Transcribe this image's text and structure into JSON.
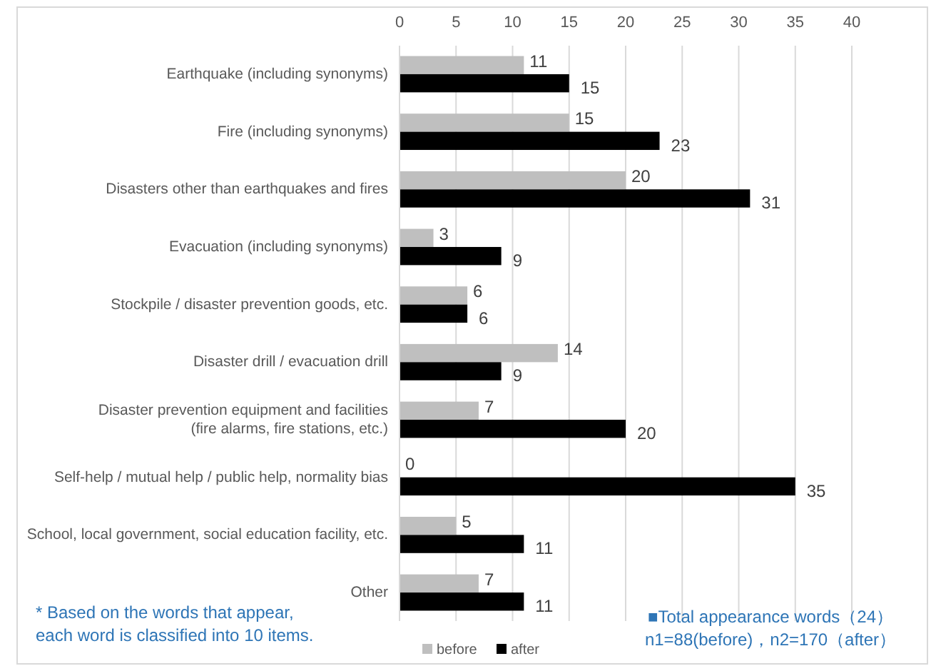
{
  "chart_data": {
    "type": "bar",
    "orientation": "horizontal",
    "categories": [
      "Earthquake (including synonyms)",
      "Fire (including synonyms)",
      "Disasters other than earthquakes and fires",
      "Evacuation (including synonyms)",
      "Stockpile / disaster prevention goods, etc.",
      "Disaster drill / evacuation drill",
      "Disaster prevention equipment and facilities\n(fire alarms, fire stations, etc.)",
      "Self-help / mutual help / public help, normality bias",
      "School, local government, social education facility, etc.",
      "Other"
    ],
    "series": [
      {
        "name": "before",
        "color": "#bfbfbf",
        "values": [
          11,
          15,
          20,
          3,
          6,
          14,
          7,
          0,
          5,
          7
        ]
      },
      {
        "name": "after",
        "color": "#000000",
        "values": [
          15,
          23,
          31,
          9,
          6,
          9,
          20,
          35,
          11,
          11
        ]
      }
    ],
    "xlim": [
      0,
      40
    ],
    "xticks": [
      0,
      5,
      10,
      15,
      20,
      25,
      30,
      35,
      40
    ],
    "grid": "x",
    "legend": "bottom",
    "data_labels": true,
    "annotations": [
      "* Based on the words that appear,\neach word is classified into 10 items.",
      "■Total appearance words（24）\nn1=88(before)，n2=170（after）"
    ]
  }
}
